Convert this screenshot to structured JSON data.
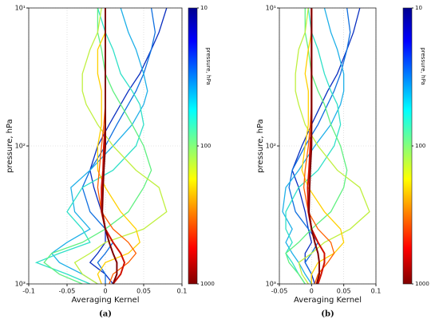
{
  "chart_data": [
    {
      "type": "line",
      "label": "(a)",
      "xlabel": "Averaging Kernel",
      "ylabel": "pressure, hPa",
      "xlim": [
        -0.1,
        0.1
      ],
      "xticks": [
        -0.1,
        -0.05,
        0,
        0.05,
        0.1
      ],
      "ylim": [
        1000,
        10
      ],
      "ylog": true,
      "yticks": [
        {
          "value": 10,
          "label": "10¹"
        },
        {
          "value": 100,
          "label": "10²"
        },
        {
          "value": 1000,
          "label": "10³"
        }
      ],
      "grid": true,
      "y": [
        10,
        15,
        20,
        30,
        40,
        50,
        70,
        100,
        150,
        200,
        300,
        400,
        500,
        600,
        700,
        850,
        1000
      ],
      "series": [
        {
          "color": "#0a2fc0",
          "values": [
            0.08,
            0.07,
            0.06,
            0.045,
            0.03,
            0.02,
            0.005,
            -0.01,
            -0.02,
            -0.015,
            -0.005,
            0.0,
            0.0,
            -0.01,
            -0.02,
            0.0,
            0.01
          ]
        },
        {
          "color": "#1070e0",
          "values": [
            0.06,
            0.065,
            0.06,
            0.05,
            0.04,
            0.03,
            0.015,
            0.0,
            -0.02,
            -0.03,
            -0.02,
            0.0,
            0.01,
            0.0,
            -0.01,
            0.0,
            0.0
          ]
        },
        {
          "color": "#20b0e8",
          "values": [
            0.02,
            0.03,
            0.04,
            0.05,
            0.055,
            0.05,
            0.035,
            0.01,
            -0.02,
            -0.045,
            -0.04,
            -0.02,
            -0.05,
            -0.07,
            -0.06,
            -0.03,
            -0.01
          ]
        },
        {
          "color": "#30e0c8",
          "values": [
            -0.01,
            0.0,
            0.01,
            0.02,
            0.035,
            0.045,
            0.05,
            0.04,
            0.01,
            -0.03,
            -0.05,
            -0.03,
            -0.02,
            -0.06,
            -0.09,
            -0.05,
            -0.02
          ]
        },
        {
          "color": "#60f080",
          "values": [
            -0.01,
            -0.01,
            -0.005,
            0.0,
            0.01,
            0.02,
            0.035,
            0.05,
            0.06,
            0.05,
            0.03,
            0.0,
            -0.03,
            -0.07,
            -0.08,
            -0.06,
            -0.03
          ]
        },
        {
          "color": "#c0f040",
          "values": [
            -0.005,
            -0.01,
            -0.02,
            -0.03,
            -0.03,
            -0.025,
            -0.01,
            0.01,
            0.04,
            0.07,
            0.08,
            0.05,
            0.0,
            -0.02,
            -0.04,
            -0.03,
            -0.01
          ]
        },
        {
          "color": "#ffd000",
          "values": [
            0.0,
            0.0,
            -0.01,
            -0.01,
            -0.005,
            -0.005,
            -0.005,
            -0.01,
            -0.01,
            0.0,
            0.02,
            0.04,
            0.045,
            0.03,
            0.0,
            -0.01,
            -0.005
          ]
        },
        {
          "color": "#ff6000",
          "values": [
            0.0,
            0.0,
            0.0,
            0.0,
            0.0,
            0.0,
            -0.002,
            -0.005,
            -0.008,
            -0.01,
            -0.005,
            0.01,
            0.03,
            0.04,
            0.03,
            0.01,
            0.005
          ]
        },
        {
          "color": "#d01000",
          "values": [
            0.0,
            0.0,
            0.0,
            0.0,
            0.0,
            0.0,
            0.0,
            -0.002,
            -0.003,
            -0.005,
            -0.005,
            0.0,
            0.01,
            0.02,
            0.025,
            0.02,
            0.01
          ]
        },
        {
          "color": "#800000",
          "values": [
            0.0,
            0.0,
            0.0,
            0.0,
            0.0,
            0.0,
            0.0,
            0.0,
            -0.002,
            -0.003,
            -0.004,
            0.0,
            0.005,
            0.01,
            0.015,
            0.015,
            0.01
          ]
        }
      ],
      "colorbar": {
        "label": "pressure, hPa",
        "lim": [
          10,
          1000
        ],
        "ticks": [
          10,
          100,
          1000
        ]
      }
    },
    {
      "type": "line",
      "label": "(b)",
      "xlabel": "Averaging Kernel",
      "ylabel": "pressure, hPa",
      "xlim": [
        -0.05,
        0.1
      ],
      "xticks": [
        -0.05,
        0,
        0.05,
        0.1
      ],
      "ylim": [
        1000,
        10
      ],
      "ylog": true,
      "yticks": [
        {
          "value": 10,
          "label": "10¹"
        },
        {
          "value": 100,
          "label": "10²"
        },
        {
          "value": 1000,
          "label": "10³"
        }
      ],
      "grid": true,
      "y": [
        10,
        15,
        20,
        30,
        40,
        50,
        70,
        100,
        150,
        200,
        300,
        400,
        500,
        600,
        700,
        850,
        1000
      ],
      "series": [
        {
          "color": "#0a2fc0",
          "values": [
            0.075,
            0.065,
            0.055,
            0.04,
            0.025,
            0.015,
            0.0,
            -0.015,
            -0.03,
            -0.02,
            -0.01,
            -0.005,
            0.0,
            -0.01,
            -0.01,
            0.0,
            0.005
          ]
        },
        {
          "color": "#1070e0",
          "values": [
            0.055,
            0.06,
            0.055,
            0.045,
            0.035,
            0.025,
            0.01,
            -0.01,
            -0.03,
            -0.035,
            -0.025,
            -0.005,
            0.01,
            0.0,
            -0.01,
            0.0,
            0.0
          ]
        },
        {
          "color": "#20b0e8",
          "values": [
            0.02,
            0.03,
            0.04,
            0.05,
            0.05,
            0.045,
            0.03,
            0.005,
            -0.02,
            -0.04,
            -0.045,
            -0.03,
            -0.04,
            -0.03,
            -0.02,
            -0.01,
            0.0
          ]
        },
        {
          "color": "#30e0c8",
          "values": [
            -0.005,
            0.0,
            0.01,
            0.02,
            0.03,
            0.04,
            0.045,
            0.035,
            0.01,
            -0.02,
            -0.04,
            -0.04,
            -0.03,
            -0.04,
            -0.03,
            -0.02,
            -0.01
          ]
        },
        {
          "color": "#60f080",
          "values": [
            -0.01,
            -0.01,
            -0.005,
            0.0,
            0.01,
            0.02,
            0.03,
            0.045,
            0.055,
            0.05,
            0.03,
            0.0,
            -0.02,
            -0.04,
            -0.035,
            -0.02,
            -0.01
          ]
        },
        {
          "color": "#c0f040",
          "values": [
            -0.005,
            -0.01,
            -0.02,
            -0.025,
            -0.025,
            -0.02,
            -0.01,
            0.01,
            0.04,
            0.075,
            0.09,
            0.06,
            0.02,
            0.0,
            -0.02,
            -0.015,
            -0.005
          ]
        },
        {
          "color": "#ffd000",
          "values": [
            0.0,
            0.0,
            -0.005,
            -0.01,
            -0.005,
            -0.005,
            -0.005,
            -0.01,
            -0.015,
            -0.005,
            0.02,
            0.045,
            0.05,
            0.035,
            0.01,
            0.0,
            0.0
          ]
        },
        {
          "color": "#ff6000",
          "values": [
            0.0,
            0.0,
            0.0,
            0.0,
            0.0,
            0.0,
            -0.002,
            -0.005,
            -0.01,
            -0.012,
            -0.005,
            0.01,
            0.03,
            0.035,
            0.025,
            0.01,
            0.005
          ]
        },
        {
          "color": "#d01000",
          "values": [
            0.0,
            0.0,
            0.0,
            0.0,
            0.0,
            0.0,
            0.0,
            -0.002,
            -0.004,
            -0.006,
            -0.005,
            0.0,
            0.01,
            0.02,
            0.02,
            0.015,
            0.01
          ]
        },
        {
          "color": "#800000",
          "values": [
            0.0,
            0.0,
            0.0,
            0.0,
            0.0,
            0.0,
            0.0,
            0.0,
            -0.002,
            -0.003,
            -0.004,
            0.0,
            0.005,
            0.01,
            0.012,
            0.012,
            0.008
          ]
        }
      ],
      "colorbar": {
        "label": "pressure, hPa",
        "lim": [
          10,
          1000
        ],
        "ticks": [
          10,
          100,
          1000
        ]
      }
    }
  ]
}
